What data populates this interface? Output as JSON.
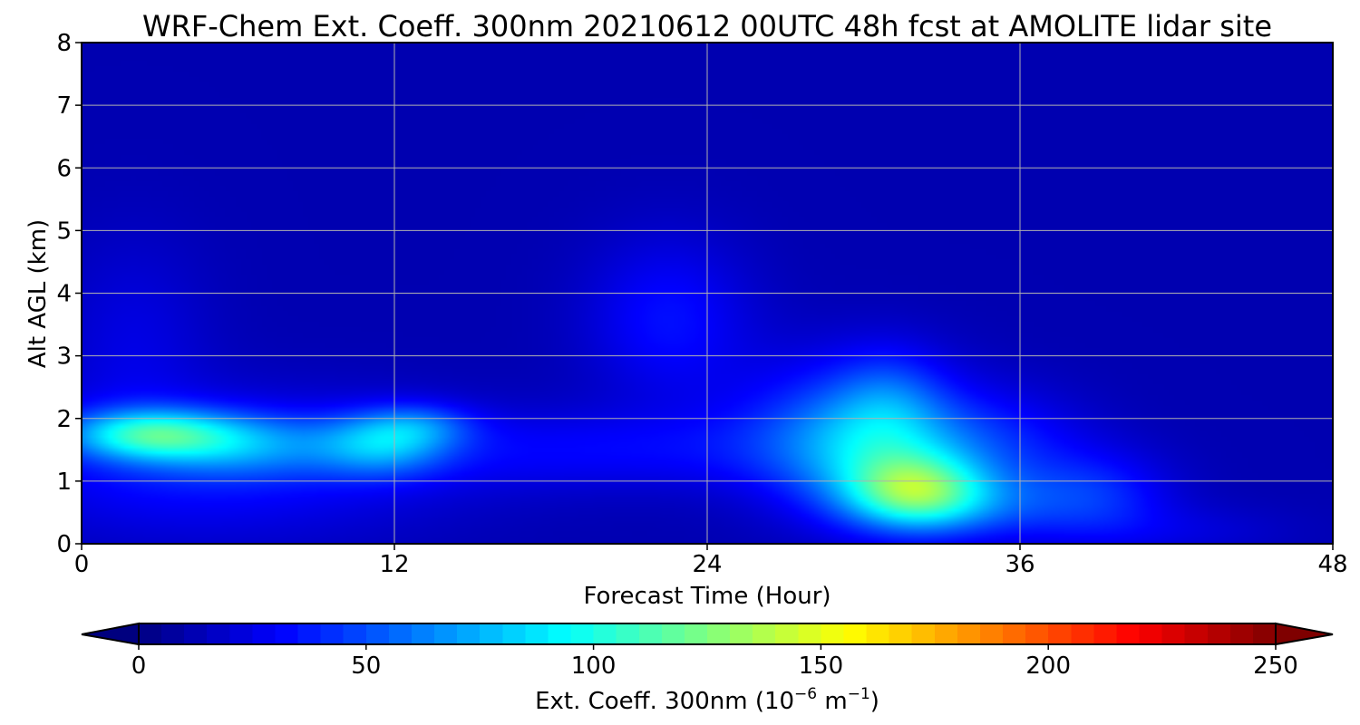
{
  "chart_data": {
    "type": "heatmap",
    "title": "WRF-Chem Ext. Coeff. 300nm  20210612 00UTC 48h fcst at AMOLITE lidar site",
    "xlabel": "Forecast Time (Hour)",
    "ylabel": "Alt AGL (km)",
    "xlim": [
      0,
      48
    ],
    "ylim": [
      0,
      8
    ],
    "xticks": [
      0,
      12,
      24,
      36,
      48
    ],
    "yticks": [
      0,
      1,
      2,
      3,
      4,
      5,
      6,
      7,
      8
    ],
    "grid": true,
    "colormap": "jet",
    "background_value": 12,
    "plumes": [
      {
        "x": 2.5,
        "y": 1.75,
        "sx": 2.2,
        "sy": 0.28,
        "v": 70
      },
      {
        "x": 6.0,
        "y": 1.6,
        "sx": 2.5,
        "sy": 0.35,
        "v": 38
      },
      {
        "x": 11.5,
        "y": 1.6,
        "sx": 1.8,
        "sy": 0.35,
        "v": 48
      },
      {
        "x": 13.0,
        "y": 1.9,
        "sx": 1.5,
        "sy": 0.25,
        "v": 25
      },
      {
        "x": 5.0,
        "y": 1.2,
        "sx": 6.0,
        "sy": 0.8,
        "v": 22
      },
      {
        "x": 2.0,
        "y": 3.2,
        "sx": 2.0,
        "sy": 1.2,
        "v": 12
      },
      {
        "x": 20.0,
        "y": 1.5,
        "sx": 7.0,
        "sy": 0.45,
        "v": 18
      },
      {
        "x": 22.5,
        "y": 3.6,
        "sx": 2.2,
        "sy": 0.9,
        "v": 22
      },
      {
        "x": 29.0,
        "y": 1.9,
        "sx": 3.0,
        "sy": 0.8,
        "v": 28
      },
      {
        "x": 32.0,
        "y": 0.85,
        "sx": 1.8,
        "sy": 0.4,
        "v": 72
      },
      {
        "x": 30.5,
        "y": 1.4,
        "sx": 2.5,
        "sy": 0.7,
        "v": 38
      },
      {
        "x": 31.0,
        "y": 2.3,
        "sx": 1.5,
        "sy": 0.6,
        "v": 22
      },
      {
        "x": 35.0,
        "y": 1.6,
        "sx": 2.5,
        "sy": 0.6,
        "v": 22
      },
      {
        "x": 39.0,
        "y": 0.8,
        "sx": 2.0,
        "sy": 0.5,
        "v": 24
      },
      {
        "x": 34.0,
        "y": 0.6,
        "sx": 3.0,
        "sy": 0.4,
        "v": 30
      },
      {
        "x": 42.0,
        "y": 0.2,
        "sx": 3.0,
        "sy": 0.3,
        "v": 10
      }
    ],
    "colorbar": {
      "min": 0,
      "max": 250,
      "ticks": [
        0,
        50,
        100,
        150,
        200,
        250
      ],
      "label_main": "Ext. Coeff. 300nm  (10",
      "label_exp1": "−6",
      "label_mid": " m",
      "label_exp2": "−1",
      "label_end": ")",
      "extend": "both"
    }
  }
}
